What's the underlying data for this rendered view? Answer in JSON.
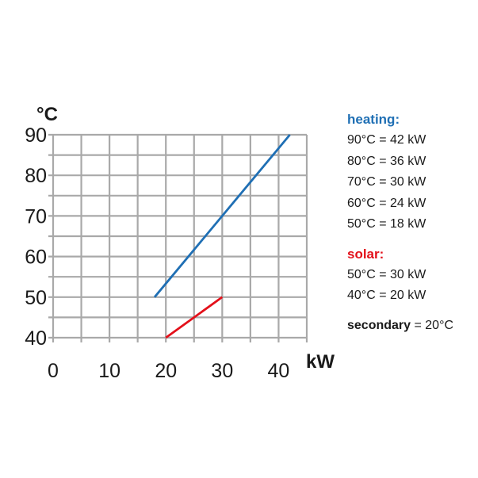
{
  "chart_data": {
    "type": "line",
    "title": "",
    "xlabel": "kW",
    "ylabel": "°C",
    "xlim": [
      0,
      45
    ],
    "ylim": [
      40,
      90
    ],
    "x_ticks": [
      "0",
      "10",
      "20",
      "30",
      "40"
    ],
    "y_ticks": [
      "90",
      "80",
      "70",
      "60",
      "50",
      "40"
    ],
    "grid": true,
    "series": [
      {
        "name": "heating",
        "color": "#1f6fb4",
        "points": [
          {
            "x": 18,
            "y": 50
          },
          {
            "x": 42,
            "y": 90
          }
        ]
      },
      {
        "name": "solar",
        "color": "#e3101a",
        "points": [
          {
            "x": 20,
            "y": 40
          },
          {
            "x": 30,
            "y": 50
          }
        ]
      }
    ]
  },
  "legend": {
    "heating": {
      "title": "heating:",
      "color": "#1f6fb4",
      "lines": [
        "90°C = 42 kW",
        "80°C = 36 kW",
        "70°C = 30 kW",
        "60°C = 24 kW",
        "50°C = 18 kW"
      ]
    },
    "solar": {
      "title": "solar:",
      "color": "#e3101a",
      "lines": [
        "50°C = 30 kW",
        "40°C = 20 kW"
      ]
    },
    "secondary": {
      "label": "secondary",
      "value": " = 20°C"
    }
  }
}
